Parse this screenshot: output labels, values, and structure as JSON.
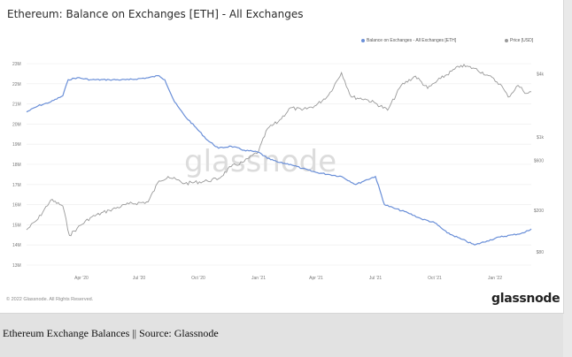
{
  "title": "Ethereum: Balance on Exchanges [ETH] - All Exchanges",
  "legend": {
    "balance": "Balance on Exchanges - All Exchanges [ETH]",
    "price": "Price [USD]"
  },
  "watermark": "glassnode",
  "footer": {
    "copyright": "© 2022 Glassnode. All Rights Reserved.",
    "brand": "glassnode"
  },
  "caption": "Ethereum Exchange Balances || Source: Glassnode",
  "colors": {
    "balance": "#6a8fd8",
    "price": "#9a9a9a",
    "grid": "#ececec"
  },
  "chart_data": {
    "type": "line",
    "title": "Ethereum: Balance on Exchanges [ETH] - All Exchanges",
    "x_tick_labels": [
      "Apr '20",
      "Jul '20",
      "Oct '20",
      "Jan '21",
      "Apr '21",
      "Jul '21",
      "Oct '21",
      "Jan '22"
    ],
    "left_axis": {
      "ticks": [
        "23M",
        "22M",
        "21M",
        "20M",
        "19M",
        "18M",
        "17M",
        "16M",
        "15M",
        "14M",
        "13M"
      ],
      "ylim": [
        13000000,
        23000000
      ]
    },
    "right_axis": {
      "scale": "log",
      "ticks": [
        "$4k",
        "$1k",
        "$600",
        "$200",
        "$80"
      ]
    },
    "grid": true,
    "legend_position": "top-right",
    "series": [
      {
        "name": "Balance on Exchanges - All Exchanges [ETH]",
        "axis": "left",
        "points": [
          [
            "2020-01-01",
            20.6
          ],
          [
            "2020-01-20",
            20.9
          ],
          [
            "2020-02-10",
            21.1
          ],
          [
            "2020-03-01",
            21.4
          ],
          [
            "2020-03-10",
            22.2
          ],
          [
            "2020-03-25",
            22.3
          ],
          [
            "2020-04-15",
            22.2
          ],
          [
            "2020-05-15",
            22.2
          ],
          [
            "2020-06-15",
            22.2
          ],
          [
            "2020-07-15",
            22.3
          ],
          [
            "2020-08-01",
            22.4
          ],
          [
            "2020-08-10",
            22.2
          ],
          [
            "2020-08-25",
            21.1
          ],
          [
            "2020-09-10",
            20.4
          ],
          [
            "2020-09-25",
            19.9
          ],
          [
            "2020-10-15",
            19.2
          ],
          [
            "2020-11-01",
            18.8
          ],
          [
            "2020-11-20",
            18.9
          ],
          [
            "2020-12-10",
            18.7
          ],
          [
            "2021-01-01",
            18.6
          ],
          [
            "2021-01-15",
            18.3
          ],
          [
            "2021-02-01",
            18.1
          ],
          [
            "2021-02-20",
            18.0
          ],
          [
            "2021-03-10",
            17.8
          ],
          [
            "2021-04-01",
            17.6
          ],
          [
            "2021-04-20",
            17.5
          ],
          [
            "2021-05-10",
            17.4
          ],
          [
            "2021-06-01",
            17.0
          ],
          [
            "2021-06-15",
            17.2
          ],
          [
            "2021-07-01",
            17.4
          ],
          [
            "2021-07-15",
            16.0
          ],
          [
            "2021-08-01",
            15.8
          ],
          [
            "2021-08-20",
            15.6
          ],
          [
            "2021-09-10",
            15.3
          ],
          [
            "2021-10-01",
            15.1
          ],
          [
            "2021-10-20",
            14.6
          ],
          [
            "2021-11-10",
            14.3
          ],
          [
            "2021-12-01",
            14.0
          ],
          [
            "2021-12-20",
            14.2
          ],
          [
            "2022-01-10",
            14.4
          ],
          [
            "2022-02-01",
            14.5
          ],
          [
            "2022-02-20",
            14.6
          ],
          [
            "2022-03-05",
            14.8
          ]
        ]
      },
      {
        "name": "Price [USD]",
        "axis": "right",
        "points": [
          [
            "2020-01-01",
            130
          ],
          [
            "2020-01-20",
            165
          ],
          [
            "2020-02-10",
            250
          ],
          [
            "2020-03-01",
            220
          ],
          [
            "2020-03-12",
            115
          ],
          [
            "2020-03-25",
            135
          ],
          [
            "2020-04-15",
            170
          ],
          [
            "2020-05-15",
            200
          ],
          [
            "2020-06-15",
            230
          ],
          [
            "2020-07-15",
            240
          ],
          [
            "2020-08-01",
            380
          ],
          [
            "2020-08-15",
            420
          ],
          [
            "2020-09-10",
            360
          ],
          [
            "2020-10-15",
            380
          ],
          [
            "2020-11-01",
            400
          ],
          [
            "2020-11-20",
            520
          ],
          [
            "2020-12-10",
            580
          ],
          [
            "2021-01-01",
            730
          ],
          [
            "2021-01-15",
            1200
          ],
          [
            "2021-02-01",
            1400
          ],
          [
            "2021-02-20",
            1900
          ],
          [
            "2021-03-10",
            1800
          ],
          [
            "2021-04-01",
            2000
          ],
          [
            "2021-04-20",
            2500
          ],
          [
            "2021-05-10",
            4100
          ],
          [
            "2021-05-25",
            2400
          ],
          [
            "2021-06-15",
            2300
          ],
          [
            "2021-07-01",
            2100
          ],
          [
            "2021-07-20",
            1800
          ],
          [
            "2021-08-10",
            3100
          ],
          [
            "2021-09-01",
            3800
          ],
          [
            "2021-09-20",
            2900
          ],
          [
            "2021-10-10",
            3600
          ],
          [
            "2021-11-10",
            4800
          ],
          [
            "2021-12-01",
            4500
          ],
          [
            "2021-12-20",
            3900
          ],
          [
            "2022-01-10",
            3200
          ],
          [
            "2022-01-24",
            2400
          ],
          [
            "2022-02-10",
            3100
          ],
          [
            "2022-02-25",
            2600
          ],
          [
            "2022-03-05",
            2700
          ]
        ]
      }
    ]
  }
}
